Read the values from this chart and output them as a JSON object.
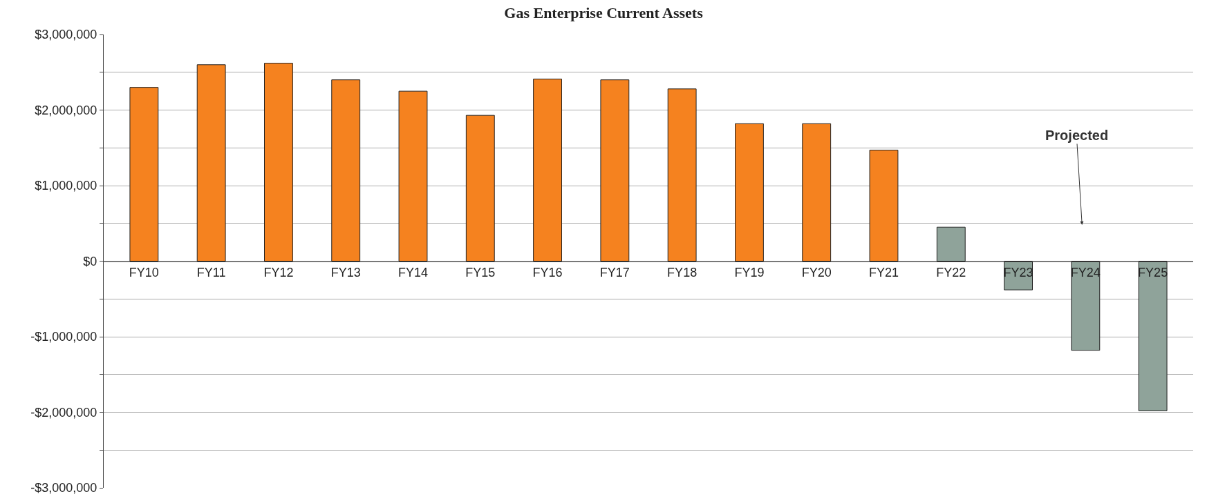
{
  "chart_data": {
    "type": "bar",
    "title": "Gas Enterprise Current Assets",
    "categories": [
      "FY10",
      "FY11",
      "FY12",
      "FY13",
      "FY14",
      "FY15",
      "FY16",
      "FY17",
      "FY18",
      "FY19",
      "FY20",
      "FY21",
      "FY22",
      "FY23",
      "FY24",
      "FY25"
    ],
    "values": [
      2300000,
      2600000,
      2620000,
      2400000,
      2250000,
      1930000,
      2410000,
      2400000,
      2280000,
      1820000,
      1820000,
      1470000,
      450000,
      -380000,
      -1180000,
      -1980000
    ],
    "colors": [
      "#f5821f",
      "#f5821f",
      "#f5821f",
      "#f5821f",
      "#f5821f",
      "#f5821f",
      "#f5821f",
      "#f5821f",
      "#f5821f",
      "#f5821f",
      "#f5821f",
      "#f5821f",
      "#8fa39a",
      "#8fa39a",
      "#8fa39a",
      "#8fa39a"
    ],
    "ylim": [
      -3000000,
      3000000
    ],
    "yticks": [
      {
        "value": -3000000,
        "label": "-$3,000,000"
      },
      {
        "value": -2500000,
        "label": null
      },
      {
        "value": -2000000,
        "label": "-$2,000,000"
      },
      {
        "value": -1500000,
        "label": null
      },
      {
        "value": -1000000,
        "label": "-$1,000,000"
      },
      {
        "value": -500000,
        "label": null
      },
      {
        "value": 0,
        "label": "$0"
      },
      {
        "value": 500000,
        "label": null
      },
      {
        "value": 1000000,
        "label": "$1,000,000"
      },
      {
        "value": 1500000,
        "label": null
      },
      {
        "value": 2000000,
        "label": "$2,000,000"
      },
      {
        "value": 2500000,
        "label": null
      },
      {
        "value": 3000000,
        "label": "$3,000,000"
      }
    ],
    "annotations": [
      "Projected"
    ],
    "grid": "y"
  }
}
